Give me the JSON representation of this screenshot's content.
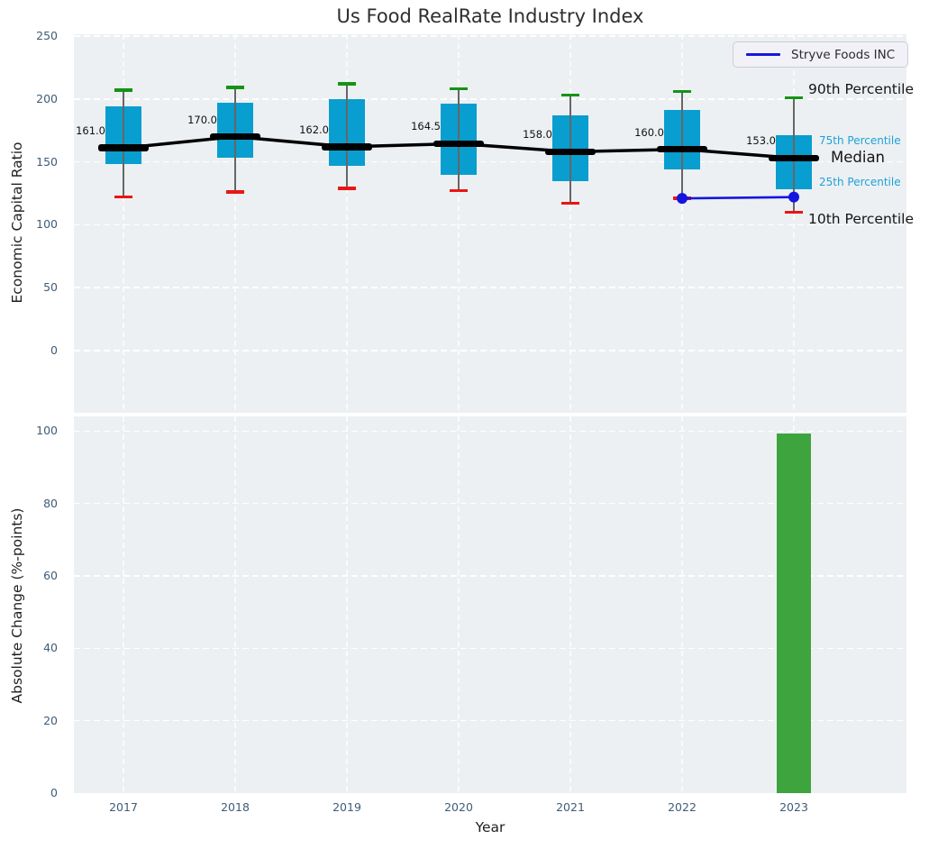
{
  "title": "Us Food RealRate Industry Index",
  "legend": {
    "label": "Stryve Foods INC"
  },
  "annotations": {
    "p90": "90th Percentile",
    "p75": "75th Percentile",
    "median": "Median",
    "p25": "25th Percentile",
    "p10": "10th Percentile"
  },
  "colors": {
    "axes_background": "#edf0f2",
    "grid": "#ffffff",
    "box_fill": "#089ecf",
    "percentile_text": "#1da2d8",
    "cap_90th": "#149414",
    "cap_10th": "#ea1515",
    "median": "#000000",
    "whisker": "#666666",
    "series_line": "#1515e0",
    "bar_fill": "#3ea43e",
    "tick_text": "#3f5c77"
  },
  "chart_data": [
    {
      "type": "boxplot+line",
      "title": "Us Food RealRate Industry Index",
      "ylabel": "Economic Capital Ratio",
      "categories": [
        "2017",
        "2018",
        "2019",
        "2020",
        "2021",
        "2022",
        "2023"
      ],
      "yticks": [
        0,
        50,
        100,
        150,
        200,
        250
      ],
      "ylim": [
        -49.4,
        251.4
      ],
      "grid": true,
      "legend_position": "upper right",
      "boxes": [
        {
          "year": "2017",
          "p10": 122,
          "p25": 148,
          "median": 161.0,
          "p75": 194,
          "p90": 207
        },
        {
          "year": "2018",
          "p10": 126,
          "p25": 153,
          "median": 170.0,
          "p75": 197,
          "p90": 209
        },
        {
          "year": "2019",
          "p10": 129,
          "p25": 147,
          "median": 162.0,
          "p75": 200,
          "p90": 212
        },
        {
          "year": "2020",
          "p10": 127,
          "p25": 140,
          "median": 164.5,
          "p75": 196,
          "p90": 208
        },
        {
          "year": "2021",
          "p10": 117,
          "p25": 135,
          "median": 158.0,
          "p75": 187,
          "p90": 203
        },
        {
          "year": "2022",
          "p10": 121,
          "p25": 144,
          "median": 160.0,
          "p75": 191,
          "p90": 206
        },
        {
          "year": "2023",
          "p10": 110,
          "p25": 128,
          "median": 153.0,
          "p75": 171,
          "p90": 201
        }
      ],
      "median_labels": [
        "161.0",
        "170.0",
        "162.0",
        "164.5",
        "158.0",
        "160.0",
        "153.0"
      ],
      "series": [
        {
          "name": "Stryve Foods INC",
          "x": [
            "2022",
            "2023"
          ],
          "values": [
            121,
            122
          ]
        }
      ]
    },
    {
      "type": "bar",
      "ylabel": "Absolute Change (%-points)",
      "xlabel": "Year",
      "categories": [
        "2017",
        "2018",
        "2019",
        "2020",
        "2021",
        "2022",
        "2023"
      ],
      "values": [
        0,
        0,
        0,
        0,
        0,
        0,
        99.3
      ],
      "yticks": [
        0,
        20,
        40,
        60,
        80,
        100
      ],
      "ylim": [
        0,
        104
      ],
      "grid": true
    }
  ]
}
